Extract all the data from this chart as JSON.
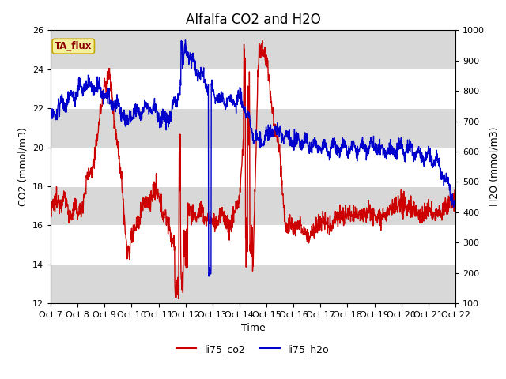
{
  "title": "Alfalfa CO2 and H2O",
  "xlabel": "Time",
  "ylabel_left": "CO2 (mmol/m3)",
  "ylabel_right": "H2O (mmol/m3)",
  "ylim_left": [
    12,
    26
  ],
  "ylim_right": [
    100,
    1000
  ],
  "yticks_left": [
    12,
    14,
    16,
    18,
    20,
    22,
    24,
    26
  ],
  "yticks_right": [
    100,
    200,
    300,
    400,
    500,
    600,
    700,
    800,
    900,
    1000
  ],
  "x_labels": [
    "Oct 7",
    "Oct 8",
    "Oct 9",
    "Oct 10",
    "Oct 11",
    "Oct 12",
    "Oct 13",
    "Oct 14",
    "Oct 15",
    "Oct 16",
    "Oct 17",
    "Oct 18",
    "Oct 19",
    "Oct 20",
    "Oct 21",
    "Oct 22"
  ],
  "annotation_text": "TA_flux",
  "legend_labels": [
    "li75_co2",
    "li75_h2o"
  ],
  "line_co2_color": "#cc0000",
  "line_h2o_color": "#0000cc",
  "line_width": 1.0,
  "title_fontsize": 12,
  "axis_label_fontsize": 9,
  "tick_fontsize": 8,
  "fig_width": 6.4,
  "fig_height": 4.8,
  "dpi": 100
}
